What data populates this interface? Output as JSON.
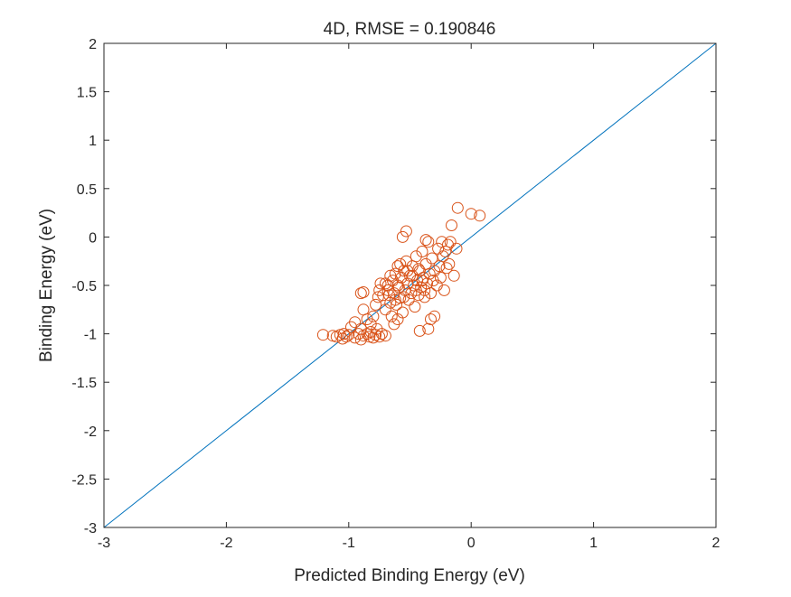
{
  "chart_data": {
    "type": "scatter",
    "title": "4D, RMSE = 0.190846",
    "xlabel": "Predicted Binding Energy (eV)",
    "ylabel": "Binding Energy (eV)",
    "xlim": [
      -3,
      2
    ],
    "ylim": [
      -3,
      2
    ],
    "xticks": [
      "-3",
      "-2",
      "-1",
      "0",
      "1",
      "2"
    ],
    "yticks": [
      "-3",
      "-2.5",
      "-2",
      "-1.5",
      "-1",
      "-0.5",
      "0",
      "0.5",
      "1",
      "1.5",
      "2"
    ],
    "grid": false,
    "reference_line": {
      "x": [
        -3,
        2
      ],
      "y": [
        -3,
        2
      ],
      "color": "#0072BD"
    },
    "series": [
      {
        "marker": "circle-open",
        "color": "#D95319",
        "points": [
          [
            -1.21,
            -1.01
          ],
          [
            -1.13,
            -1.02
          ],
          [
            -1.1,
            -1.03
          ],
          [
            -1.07,
            -1.01
          ],
          [
            -1.05,
            -1.05
          ],
          [
            -1.04,
            -1.0
          ],
          [
            -1.02,
            -1.03
          ],
          [
            -1.0,
            -1.01
          ],
          [
            -0.95,
            -1.04
          ],
          [
            -0.92,
            -1.0
          ],
          [
            -0.9,
            -1.06
          ],
          [
            -0.88,
            -1.02
          ],
          [
            -0.85,
            -1.0
          ],
          [
            -0.83,
            -1.03
          ],
          [
            -0.8,
            -1.04
          ],
          [
            -0.78,
            -1.01
          ],
          [
            -0.75,
            -1.03
          ],
          [
            -0.73,
            -1.0
          ],
          [
            -0.7,
            -1.02
          ],
          [
            -0.98,
            -0.93
          ],
          [
            -0.95,
            -0.88
          ],
          [
            -0.9,
            -0.95
          ],
          [
            -0.88,
            -0.75
          ],
          [
            -0.85,
            -0.85
          ],
          [
            -0.82,
            -0.9
          ],
          [
            -0.8,
            -0.82
          ],
          [
            -0.78,
            -0.7
          ],
          [
            -0.76,
            -0.62
          ],
          [
            -0.75,
            -0.55
          ],
          [
            -0.74,
            -0.48
          ],
          [
            -0.72,
            -0.6
          ],
          [
            -0.7,
            -0.75
          ],
          [
            -0.68,
            -0.5
          ],
          [
            -0.66,
            -0.68
          ],
          [
            -0.65,
            -0.82
          ],
          [
            -0.64,
            -0.45
          ],
          [
            -0.63,
            -0.58
          ],
          [
            -0.62,
            -0.38
          ],
          [
            -0.61,
            -0.7
          ],
          [
            -0.6,
            -0.3
          ],
          [
            -0.59,
            -0.52
          ],
          [
            -0.58,
            -0.63
          ],
          [
            -0.57,
            -0.42
          ],
          [
            -0.56,
            -0.78
          ],
          [
            -0.55,
            -0.35
          ],
          [
            -0.54,
            -0.55
          ],
          [
            -0.53,
            -0.25
          ],
          [
            -0.52,
            -0.48
          ],
          [
            -0.51,
            -0.65
          ],
          [
            -0.5,
            -0.4
          ],
          [
            -0.49,
            -0.58
          ],
          [
            -0.48,
            -0.3
          ],
          [
            -0.47,
            -0.5
          ],
          [
            -0.46,
            -0.72
          ],
          [
            -0.45,
            -0.2
          ],
          [
            -0.44,
            -0.45
          ],
          [
            -0.43,
            -0.6
          ],
          [
            -0.42,
            -0.35
          ],
          [
            -0.41,
            -0.52
          ],
          [
            -0.4,
            -0.15
          ],
          [
            -0.39,
            -0.42
          ],
          [
            -0.38,
            -0.55
          ],
          [
            -0.37,
            -0.28
          ],
          [
            -0.36,
            -0.48
          ],
          [
            -0.35,
            -0.05
          ],
          [
            -0.34,
            -0.38
          ],
          [
            -0.33,
            -0.58
          ],
          [
            -0.32,
            -0.22
          ],
          [
            -0.31,
            -0.45
          ],
          [
            -0.3,
            -0.35
          ],
          [
            -0.28,
            -0.5
          ],
          [
            -0.27,
            -0.12
          ],
          [
            -0.26,
            -0.3
          ],
          [
            -0.25,
            -0.42
          ],
          [
            -0.24,
            -0.05
          ],
          [
            -0.23,
            -0.2
          ],
          [
            -0.22,
            -0.55
          ],
          [
            -0.21,
            -0.15
          ],
          [
            -0.2,
            -0.32
          ],
          [
            -0.19,
            -0.08
          ],
          [
            -0.18,
            -0.28
          ],
          [
            -0.17,
            -0.05
          ],
          [
            -0.16,
            0.12
          ],
          [
            -0.14,
            -0.4
          ],
          [
            -0.12,
            -0.12
          ],
          [
            -0.11,
            0.3
          ],
          [
            0.0,
            0.24
          ],
          [
            0.07,
            0.22
          ],
          [
            -0.53,
            0.06
          ],
          [
            -0.56,
            0.0
          ],
          [
            -0.37,
            -0.03
          ],
          [
            -0.42,
            -0.97
          ],
          [
            -0.33,
            -0.85
          ],
          [
            -0.3,
            -0.82
          ],
          [
            -0.35,
            -0.95
          ],
          [
            -0.9,
            -0.58
          ],
          [
            -0.88,
            -0.57
          ],
          [
            -0.68,
            -0.55
          ],
          [
            -0.7,
            -0.48
          ],
          [
            -0.6,
            -0.5
          ],
          [
            -0.58,
            -0.28
          ],
          [
            -0.52,
            -0.35
          ],
          [
            -0.48,
            -0.4
          ],
          [
            -0.55,
            -0.62
          ],
          [
            -0.62,
            -0.65
          ],
          [
            -0.66,
            -0.4
          ],
          [
            -0.45,
            -0.55
          ],
          [
            -0.43,
            -0.33
          ],
          [
            -0.4,
            -0.45
          ],
          [
            -0.38,
            -0.62
          ],
          [
            -0.6,
            -0.85
          ],
          [
            -0.63,
            -0.9
          ],
          [
            -0.77,
            -0.95
          ],
          [
            -0.82,
            -0.98
          ],
          [
            -0.67,
            -0.6
          ]
        ]
      }
    ]
  }
}
